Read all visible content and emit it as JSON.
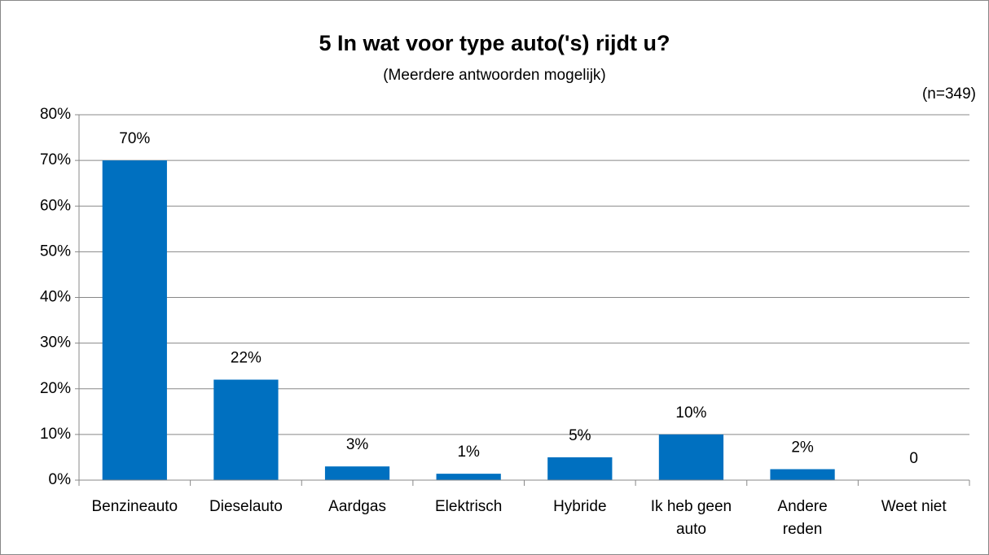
{
  "chart_data": {
    "type": "bar",
    "title": "5 In wat voor type auto('s) rijdt u?",
    "subtitle": "(Meerdere antwoorden mogelijk)",
    "annotation": "(n=349)",
    "categories": [
      "Benzineauto",
      "Dieselauto",
      "Aardgas",
      "Elektrisch",
      "Hybride",
      "Ik heb geen auto",
      "Andere reden",
      "Weet niet"
    ],
    "values": [
      70,
      22,
      3,
      1.4,
      5,
      10,
      2.4,
      0
    ],
    "value_labels": [
      "70%",
      "22%",
      "3%",
      "1%",
      "5%",
      "10%",
      "2%",
      "0"
    ],
    "color": "#0070c0",
    "ylim": [
      0,
      80
    ],
    "yticks": [
      {
        "value": 0,
        "label": "0%"
      },
      {
        "value": 10,
        "label": "10%"
      },
      {
        "value": 20,
        "label": "20%"
      },
      {
        "value": 30,
        "label": "30%"
      },
      {
        "value": 40,
        "label": "40%"
      },
      {
        "value": 50,
        "label": "50%"
      },
      {
        "value": 60,
        "label": "60%"
      },
      {
        "value": 70,
        "label": "70%"
      },
      {
        "value": 80,
        "label": "80%"
      }
    ],
    "grid": true
  }
}
